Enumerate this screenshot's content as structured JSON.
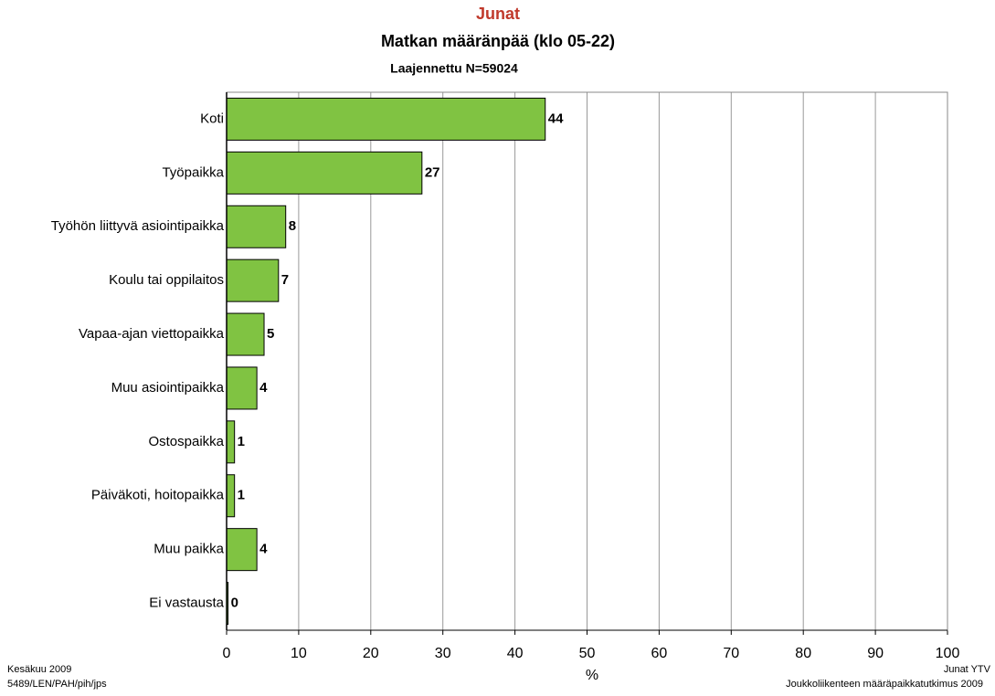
{
  "chart_data": {
    "type": "bar",
    "orientation": "horizontal",
    "title": "Junat",
    "title_color": "#c0392b",
    "subtitle": "Matkan määränpää (klo 05-22)",
    "note": "Laajennettu N=59024",
    "x_label": "%",
    "categories": [
      "Koti",
      "Työpaikka",
      "Työhön liittyvä asiointipaikka",
      "Koulu tai oppilaitos",
      "Vapaa-ajan viettopaikka",
      "Muu asiointipaikka",
      "Ostospaikka",
      "Päiväkoti, hoitopaikka",
      "Muu paikka",
      "Ei vastausta"
    ],
    "values": [
      44.2,
      27.1,
      8.2,
      7.2,
      5.2,
      4.2,
      1.1,
      1.1,
      4.2,
      0.2
    ],
    "value_labels": [
      "44",
      "27",
      "8",
      "7",
      "5",
      "4",
      "1",
      "1",
      "4",
      "0"
    ],
    "color": "#80c342",
    "xlim": [
      0,
      100
    ],
    "xticks": [
      0,
      10,
      20,
      30,
      40,
      50,
      60,
      70,
      80,
      90,
      100
    ],
    "grid": true,
    "footer_left": [
      "Kesäkuu 2009",
      "5489/LEN/PAH/pih/jps"
    ],
    "footer_right": [
      "Junat YTV",
      "Joukkoliikenteen määräpaikkatutkimus 2009"
    ]
  }
}
